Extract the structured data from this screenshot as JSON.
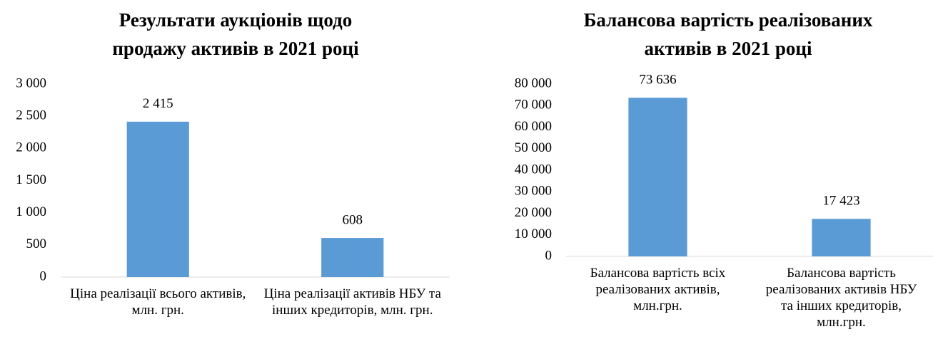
{
  "chart_data": [
    {
      "type": "bar",
      "title": "Результати аукціонів щодо продажу активів в 2021 році",
      "categories": [
        "Ціна реалізації всього активів, млн. грн.",
        "Ціна реалізації активів НБУ та інших кредиторів, млн. грн."
      ],
      "values": [
        2415,
        608
      ],
      "value_labels": [
        "2 415",
        "608"
      ],
      "color": "#5b9bd5",
      "ylim": [
        0,
        3000
      ],
      "yticks": [
        0,
        500,
        {
          "value": 1000,
          "label": "1 000"
        },
        {
          "value": 1500,
          "label": "1 500"
        },
        {
          "value": 2000,
          "label": "2 000"
        },
        {
          "value": 2500,
          "label": "2 500"
        },
        {
          "value": 3000,
          "label": "3 000"
        }
      ],
      "grid": false
    },
    {
      "type": "bar",
      "title": "Балансова вартість реалізованих активів в 2021 році",
      "categories": [
        "Балансова вартість всіх реалізованих активів, млн.грн.",
        "Балансова вартість реалізованих активів НБУ та інших кредиторів, млн.грн."
      ],
      "values": [
        73636,
        17423
      ],
      "value_labels": [
        "73 636",
        "17 423"
      ],
      "color": "#5b9bd5",
      "ylim": [
        0,
        80000
      ],
      "yticks": [
        0,
        {
          "value": 10000,
          "label": "10 000"
        },
        {
          "value": 20000,
          "label": "20 000"
        },
        {
          "value": 30000,
          "label": "30 000"
        },
        {
          "value": 40000,
          "label": "40 000"
        },
        {
          "value": 50000,
          "label": "50 000"
        },
        {
          "value": 60000,
          "label": "60 000"
        },
        {
          "value": 70000,
          "label": "70 000"
        },
        {
          "value": 80000,
          "label": "80 000"
        }
      ],
      "grid": false
    }
  ]
}
